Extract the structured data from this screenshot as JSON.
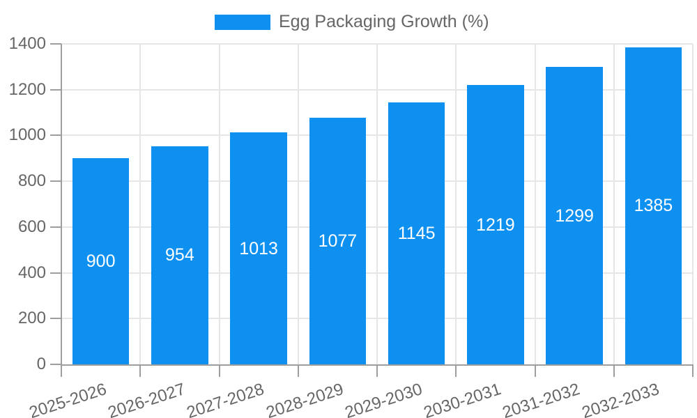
{
  "chart_data": {
    "type": "bar",
    "title": "Egg Packaging Growth (%)",
    "legend": {
      "label": "Egg Packaging Growth (%)",
      "position": "top"
    },
    "categories": [
      "2025-2026",
      "2026-2027",
      "2027-2028",
      "2028-2029",
      "2029-2030",
      "2030-2031",
      "2031-2032",
      "2032-2033"
    ],
    "series": [
      {
        "name": "Egg Packaging Growth (%)",
        "values": [
          900,
          954,
          1013,
          1077,
          1145,
          1219,
          1299,
          1385
        ]
      }
    ],
    "xlabel": "",
    "ylabel": "",
    "ylim": [
      0,
      1400
    ],
    "yticks": [
      0,
      200,
      400,
      600,
      800,
      1000,
      1200,
      1400
    ],
    "grid": true,
    "x_tick_rotation_deg": -18,
    "bar_fraction_of_category": 0.72,
    "colors": {
      "bar": "#0e90f1",
      "axis_text": "#666666",
      "value_label_text": "#ffffff",
      "grid_line": "#e6e6e6",
      "axis_line": "#9e9e9e",
      "background": "#ffffff"
    }
  }
}
